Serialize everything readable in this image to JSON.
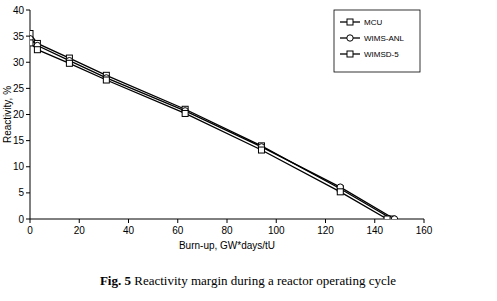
{
  "chart_data": {
    "type": "line",
    "title": "Fig. 5 Reactivity margin during a reactor operating cycle",
    "x_label": "Burn-up, GW*days/tU",
    "y_label": "Reactivity, %",
    "xlim": [
      0,
      160
    ],
    "xticks": [
      0,
      20,
      40,
      60,
      80,
      100,
      120,
      140,
      160
    ],
    "ylim": [
      0,
      40
    ],
    "yticks": [
      0,
      5,
      10,
      15,
      20,
      25,
      30,
      35,
      40
    ],
    "grid": false,
    "legend": "upper right",
    "series": [
      {
        "name": "MCU",
        "color": "#000000",
        "marker": "square",
        "line_style": "solid",
        "x": [
          0,
          3,
          16,
          31,
          63,
          94,
          126,
          147
        ],
        "values": [
          35.5,
          33.6,
          30.8,
          27.5,
          21.0,
          14.0,
          5.8,
          0
        ]
      },
      {
        "name": "WIMS-ANL",
        "color": "#000000",
        "marker": "circle",
        "line_style": "solid",
        "x": [
          0,
          3,
          16,
          31,
          63,
          94,
          126,
          148
        ],
        "values": [
          34.5,
          33.2,
          30.3,
          27.0,
          20.7,
          13.8,
          6.1,
          0
        ]
      },
      {
        "name": "WIMSD-5",
        "color": "#000000",
        "marker": "square",
        "line_style": "solid",
        "x": [
          0,
          3,
          16,
          31,
          63,
          94,
          126,
          145
        ],
        "values": [
          33.7,
          32.4,
          29.8,
          26.6,
          20.2,
          13.2,
          5.2,
          0
        ]
      }
    ]
  }
}
